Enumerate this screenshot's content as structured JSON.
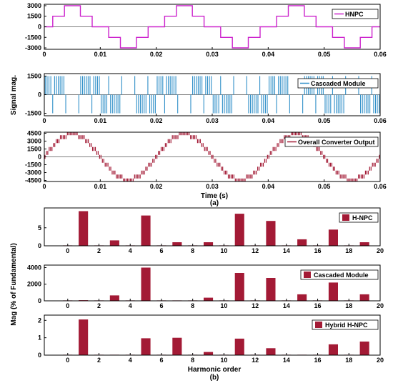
{
  "chart_data": [
    {
      "type": "line",
      "panel": "a1",
      "series": [
        {
          "name": "HNPC",
          "color": "#cc22cc",
          "kind": "stair",
          "levels": [
            -3000,
            -1500,
            0,
            1500,
            3000
          ]
        }
      ],
      "xlim": [
        0,
        0.06
      ],
      "ylim": [
        -3200,
        3200
      ],
      "xticks": [
        "0",
        "0.01",
        "0.02",
        "0.03",
        "0.04",
        "0.05",
        "0.06"
      ],
      "yticks": [
        3000,
        1500,
        0,
        -1500,
        -3000
      ],
      "legend": "top-right"
    },
    {
      "type": "line",
      "panel": "a2",
      "series": [
        {
          "name": "Cascaded Module",
          "color": "#2f8fc8",
          "kind": "pwm",
          "levels": [
            -1500,
            0,
            1500
          ]
        }
      ],
      "xlim": [
        0,
        0.06
      ],
      "ylim": [
        -1700,
        1700
      ],
      "xticks": [
        "0",
        "0.01",
        "0.02",
        "0.03",
        "0.04",
        "0.05",
        "0.06"
      ],
      "yticks": [
        1500,
        0,
        -1500
      ],
      "ylabel": "Signal mag.",
      "legend": "top-right"
    },
    {
      "type": "line",
      "panel": "a3",
      "series": [
        {
          "name": "Overall Converter Output",
          "color": "#a31a35",
          "kind": "sum"
        }
      ],
      "xlim": [
        0,
        0.06
      ],
      "ylim": [
        -4700,
        4700
      ],
      "xticks": [
        "0",
        "0.01",
        "0.02",
        "0.03",
        "0.04",
        "0.05",
        "0.06"
      ],
      "yticks": [
        4500,
        3000,
        1500,
        0,
        -1500,
        -3000,
        -4500
      ],
      "xlabel": "Time (s)",
      "caption": "(a)",
      "legend": "top-right"
    },
    {
      "type": "bar",
      "panel": "b1",
      "series": [
        {
          "name": "H-NPC",
          "color": "#a31a35"
        }
      ],
      "x": [
        0,
        1,
        2,
        3,
        4,
        5,
        6,
        7,
        8,
        9,
        10,
        11,
        12,
        13,
        14,
        15,
        16,
        17,
        18,
        19
      ],
      "values": [
        0,
        9.6,
        0,
        1.5,
        0,
        8.4,
        0,
        1.0,
        0,
        1.0,
        0,
        8.9,
        0,
        6.9,
        0,
        1.8,
        0,
        4.5,
        0,
        1.0
      ],
      "xlim": [
        -1.5,
        20
      ],
      "ylim": [
        0,
        10.5
      ],
      "xticks": [
        "0",
        "2",
        "4",
        "6",
        "8",
        "10",
        "12",
        "14",
        "16",
        "18",
        "20"
      ],
      "yticks": [
        0,
        5
      ],
      "legend": "top-right"
    },
    {
      "type": "bar",
      "panel": "b2",
      "series": [
        {
          "name": "Cascaded Module",
          "color": "#a31a35"
        }
      ],
      "x": [
        0,
        1,
        2,
        3,
        4,
        5,
        6,
        7,
        8,
        9,
        10,
        11,
        12,
        13,
        14,
        15,
        16,
        17,
        18,
        19
      ],
      "values": [
        0,
        80,
        0,
        650,
        0,
        4000,
        0,
        50,
        0,
        380,
        0,
        3350,
        0,
        2750,
        0,
        780,
        0,
        2200,
        0,
        780
      ],
      "xlim": [
        -1.5,
        20
      ],
      "ylim": [
        0,
        4300
      ],
      "xticks": [
        "0",
        "2",
        "4",
        "6",
        "8",
        "10",
        "12",
        "14",
        "16",
        "18",
        "20"
      ],
      "yticks": [
        0,
        2000,
        4000
      ],
      "ylabel": "Mag (% of Fundamental)",
      "legend": "top-right"
    },
    {
      "type": "bar",
      "panel": "b3",
      "series": [
        {
          "name": "Hybrid H-NPC",
          "color": "#a31a35"
        }
      ],
      "x": [
        0,
        1,
        2,
        3,
        4,
        5,
        6,
        7,
        8,
        9,
        10,
        11,
        12,
        13,
        14,
        15,
        16,
        17,
        18,
        19
      ],
      "values": [
        0,
        2.05,
        0,
        0.02,
        0,
        0.97,
        0,
        1.0,
        0,
        0.18,
        0,
        0.95,
        0,
        0.4,
        0,
        0.02,
        0,
        0.62,
        0,
        0.78
      ],
      "xlim": [
        -1.5,
        20
      ],
      "ylim": [
        0,
        2.3
      ],
      "xticks": [
        "0",
        "2",
        "4",
        "6",
        "8",
        "10",
        "12",
        "14",
        "16",
        "18",
        "20"
      ],
      "yticks": [
        0,
        1,
        2
      ],
      "xlabel": "Harmonic order",
      "caption": "(b)",
      "legend": "top-right"
    }
  ]
}
